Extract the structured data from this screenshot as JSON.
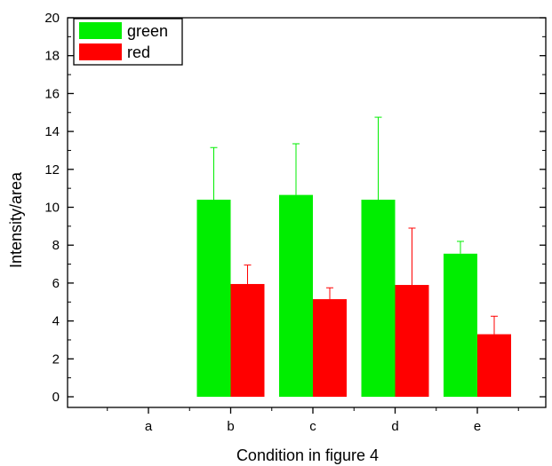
{
  "chart_data": {
    "type": "bar",
    "title": "",
    "xlabel": "Condition in figure 4",
    "ylabel": "Intensity/area",
    "categories": [
      "a",
      "b",
      "c",
      "d",
      "e"
    ],
    "ylim": [
      0,
      20
    ],
    "yticks": [
      "0",
      "2",
      "4",
      "6",
      "8",
      "10",
      "12",
      "14",
      "16",
      "18",
      "20"
    ],
    "series": [
      {
        "name": "green",
        "color": "#00ee00",
        "values": [
          0.0,
          10.4,
          10.65,
          10.4,
          7.55
        ],
        "errors": [
          0.0,
          2.75,
          2.7,
          4.35,
          0.65
        ]
      },
      {
        "name": "red",
        "color": "#ff0000",
        "values": [
          0.0,
          5.95,
          5.15,
          5.9,
          3.3
        ],
        "errors": [
          0.0,
          1.0,
          0.6,
          3.0,
          0.95
        ]
      }
    ],
    "legend": "top-left",
    "grid": false,
    "error_bars": "upper"
  }
}
